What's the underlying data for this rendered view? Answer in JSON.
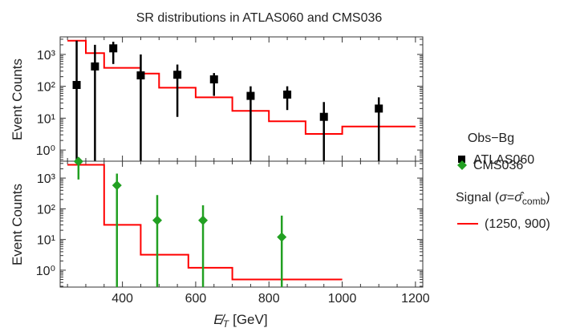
{
  "chart_data": {
    "title": "SR distributions in ATLAS060 and CMS036",
    "xlabel": "E̸_T [GeV]",
    "xlabel_parts": {
      "sym": "E̸",
      "sub": "T",
      "unit": "[GeV]"
    },
    "xlim": [
      230,
      1220
    ],
    "x_ticks": [
      400,
      600,
      800,
      1000,
      1200
    ],
    "x_tick_labels": [
      "400",
      "600",
      "800",
      "1000",
      "1200"
    ],
    "y_scale": "log",
    "y_tick_labels": [
      "10⁰",
      "10¹",
      "10²",
      "10³"
    ],
    "colors": {
      "observed_atlas": "#000000",
      "observed_cms": "#22a022",
      "signal": "#ff0000"
    },
    "legend": {
      "group1_title": "Obs−Bg",
      "atlas_label": "ATLAS060",
      "cms_label": "CMS036",
      "group2_title": "Signal (σ=σ̂_comb)",
      "group2_title_parts": {
        "pre": "Signal (",
        "sigma": "σ",
        "eq": "=",
        "sigmahat": "σ̂",
        "sub": "comb",
        "post": ")"
      },
      "signal_label": "(1250, 900)"
    },
    "panels": [
      {
        "type": "step+errorbar",
        "ylabel": "Event Counts",
        "ylim_log10": [
          -0.35,
          3.55
        ],
        "signal": {
          "name": "(1250, 900)",
          "edges": [
            250,
            300,
            350,
            450,
            500,
            600,
            700,
            800,
            900,
            1000,
            1200
          ],
          "values": [
            2700,
            1100,
            380,
            250,
            90,
            45,
            17,
            8,
            3.2,
            5.5
          ]
        },
        "observed": {
          "name": "ATLAS060",
          "marker": "square",
          "x": [
            275,
            325,
            375,
            450,
            550,
            650,
            750,
            850,
            950,
            1100
          ],
          "y": [
            110,
            420,
            1550,
            220,
            230,
            165,
            50,
            55,
            11,
            20
          ],
          "yerr_low": [
            0.1,
            0.1,
            500,
            0.1,
            11,
            50,
            0.1,
            18,
            0.1,
            0.1
          ],
          "yerr_high": [
            2700,
            2000,
            2500,
            1000,
            480,
            260,
            100,
            100,
            32,
            45
          ]
        }
      },
      {
        "type": "step+errorbar",
        "ylabel": "Event Counts",
        "ylim_log10": [
          -0.55,
          3.55
        ],
        "signal": {
          "name": "(1250, 900)",
          "edges": [
            250,
            350,
            450,
            580,
            700,
            1000
          ],
          "values": [
            2700,
            30,
            3.2,
            1.2,
            0.5
          ]
        },
        "observed": {
          "name": "CMS036",
          "marker": "diamond",
          "x": [
            280,
            385,
            495,
            620,
            835
          ],
          "y": [
            3500,
            580,
            42,
            42,
            12
          ],
          "yerr_low": [
            900,
            0.1,
            0.1,
            0.1,
            0.1
          ],
          "yerr_high": [
            7000,
            1400,
            280,
            130,
            60
          ]
        }
      }
    ]
  }
}
